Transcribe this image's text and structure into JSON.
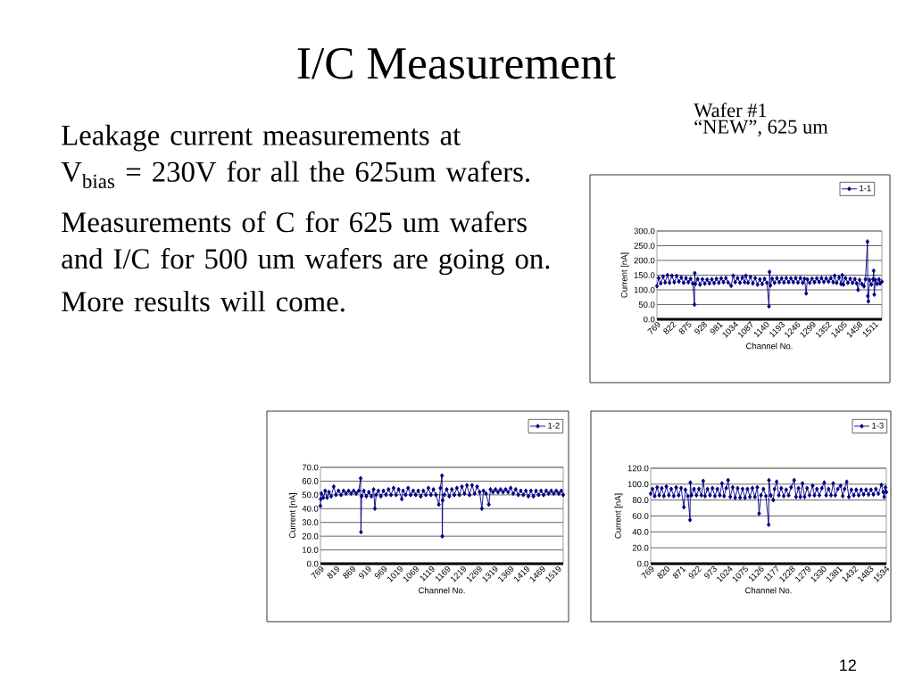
{
  "chart_data": [
    {
      "type": "other",
      "title": "I/C Measurement",
      "annotations": [
        "Leakage current measurements at\nV$_{bias}$ = 230V for all the 625um wafers.",
        "Measurements of C for 625 um wafers and I/C for 500 um wafers are going on.",
        "More results will come.",
        "12"
      ]
    },
    {
      "type": "line",
      "title": "Wafer #1",
      "subtitle": "“NEW”, 625 um",
      "xlabel": "Channel No.",
      "ylabel": "Current [nA]",
      "xlim": [
        769,
        1536
      ],
      "xticks": [
        769,
        822,
        875,
        928,
        981,
        1034,
        1087,
        1140,
        1193,
        1246,
        1299,
        1352,
        1405,
        1458,
        1511
      ],
      "ylim": [
        0,
        300
      ],
      "yticks": [
        {
          "value": 0,
          "label": "0.0"
        },
        {
          "value": 50,
          "label": "50.0"
        },
        {
          "value": 100,
          "label": "100.0"
        },
        {
          "value": 150,
          "label": "150.0"
        },
        {
          "value": 200,
          "label": "200.0"
        },
        {
          "value": 250,
          "label": "250.0"
        },
        {
          "value": 300,
          "label": "300.0"
        }
      ],
      "grid": "y",
      "legend": "top right",
      "marker": "diamond",
      "line_style": "solid",
      "x": [
        769,
        775,
        782,
        790,
        797,
        805,
        812,
        820,
        828,
        836,
        844,
        852,
        860,
        868,
        876,
        884,
        891,
        897,
        898,
        900,
        908,
        916,
        924,
        932,
        940,
        948,
        956,
        964,
        972,
        980,
        988,
        996,
        1004,
        1012,
        1022,
        1029,
        1036,
        1044,
        1052,
        1060,
        1068,
        1072,
        1080,
        1088,
        1096,
        1104,
        1112,
        1120,
        1128,
        1136,
        1144,
        1151,
        1153,
        1156,
        1162,
        1170,
        1178,
        1186,
        1194,
        1202,
        1210,
        1218,
        1226,
        1234,
        1242,
        1250,
        1258,
        1266,
        1272,
        1278,
        1282,
        1290,
        1298,
        1306,
        1314,
        1322,
        1330,
        1338,
        1346,
        1354,
        1362,
        1370,
        1375,
        1382,
        1390,
        1397,
        1401,
        1405,
        1412,
        1420,
        1428,
        1436,
        1444,
        1450,
        1455,
        1460,
        1468,
        1475,
        1480,
        1487,
        1488,
        1490,
        1494,
        1500,
        1506,
        1508,
        1510,
        1514,
        1520,
        1526,
        1530,
        1536
      ],
      "series": [
        {
          "name": "1-1",
          "color": "#000080",
          "values": [
            113,
            140,
            122,
            145,
            125,
            150,
            124,
            148,
            126,
            147,
            128,
            142,
            124,
            140,
            126,
            138,
            122,
            50,
            157,
            120,
            137,
            118,
            136,
            121,
            135,
            122,
            136,
            123,
            138,
            124,
            139,
            126,
            140,
            125,
            114,
            148,
            126,
            140,
            124,
            142,
            126,
            148,
            124,
            144,
            122,
            140,
            118,
            136,
            120,
            138,
            124,
            44,
            161,
            115,
            138,
            124,
            140,
            126,
            139,
            125,
            140,
            126,
            139,
            126,
            140,
            125,
            140,
            124,
            138,
            88,
            136,
            124,
            138,
            126,
            139,
            127,
            140,
            127,
            139,
            128,
            140,
            126,
            148,
            124,
            142,
            120,
            150,
            118,
            140,
            124,
            138,
            124,
            137,
            122,
            100,
            134,
            120,
            112,
            136,
            264,
            79,
            61,
            134,
            118,
            136,
            165,
            84,
            134,
            120,
            136,
            122,
            128
          ]
        }
      ]
    },
    {
      "type": "line",
      "xlabel": "Channel No.",
      "ylabel": "Current [nA]",
      "xlim": [
        769,
        1536
      ],
      "xticks": [
        769,
        819,
        869,
        919,
        969,
        1019,
        1069,
        1119,
        1169,
        1219,
        1269,
        1319,
        1369,
        1419,
        1469,
        1519
      ],
      "ylim": [
        0,
        70
      ],
      "yticks": [
        {
          "value": 0,
          "label": "0.0"
        },
        {
          "value": 10,
          "label": "10.0"
        },
        {
          "value": 20,
          "label": "20.0"
        },
        {
          "value": 30,
          "label": "30.0"
        },
        {
          "value": 40,
          "label": "40.0"
        },
        {
          "value": 50,
          "label": "50.0"
        },
        {
          "value": 60,
          "label": "60.0"
        },
        {
          "value": 70,
          "label": "70.0"
        }
      ],
      "grid": "y",
      "legend": "top right",
      "marker": "diamond",
      "line_style": "solid",
      "x": [
        769,
        770,
        772,
        778,
        784,
        790,
        796,
        803,
        811,
        818,
        826,
        834,
        842,
        850,
        858,
        866,
        874,
        882,
        890,
        896,
        897,
        899,
        906,
        914,
        922,
        930,
        937,
        941,
        945,
        952,
        960,
        968,
        976,
        984,
        992,
        1000,
        1008,
        1016,
        1026,
        1030,
        1038,
        1046,
        1054,
        1062,
        1070,
        1078,
        1086,
        1094,
        1102,
        1110,
        1118,
        1126,
        1134,
        1143,
        1148,
        1153,
        1154,
        1155,
        1160,
        1168,
        1176,
        1184,
        1192,
        1200,
        1208,
        1216,
        1224,
        1232,
        1240,
        1248,
        1256,
        1264,
        1272,
        1279,
        1284,
        1292,
        1301,
        1306,
        1314,
        1322,
        1330,
        1338,
        1346,
        1354,
        1362,
        1370,
        1378,
        1386,
        1394,
        1402,
        1410,
        1418,
        1426,
        1434,
        1442,
        1450,
        1458,
        1466,
        1474,
        1482,
        1490,
        1498,
        1506,
        1514,
        1522,
        1530,
        1536
      ],
      "series": [
        {
          "name": "1-2",
          "color": "#000080",
          "values": [
            42,
            47,
            51,
            48,
            53,
            48,
            52,
            49,
            56,
            50,
            53,
            50,
            53,
            51,
            53,
            51,
            53,
            51,
            53,
            62,
            23,
            49,
            53,
            49,
            52,
            49,
            54,
            40,
            50,
            53,
            49,
            53,
            50,
            54,
            50,
            55,
            50,
            54,
            47,
            53,
            50,
            55,
            50,
            53,
            50,
            53,
            49,
            53,
            50,
            55,
            50,
            54,
            50,
            43,
            55,
            64,
            20,
            46,
            50,
            54,
            49,
            54,
            50,
            55,
            50,
            56,
            51,
            57,
            50,
            57,
            51,
            56,
            52,
            40,
            53,
            51,
            43,
            54,
            52,
            54,
            52,
            54,
            52,
            54,
            52,
            55,
            51,
            54,
            50,
            53,
            50,
            53,
            49,
            53,
            49,
            53,
            50,
            53,
            50,
            53,
            51,
            53,
            51,
            53,
            51,
            53,
            50
          ]
        }
      ]
    },
    {
      "type": "line",
      "xlabel": "Channel No.",
      "ylabel": "Current [nA]",
      "xlim": [
        769,
        1536
      ],
      "xticks": [
        769,
        820,
        871,
        922,
        973,
        1024,
        1075,
        1126,
        1177,
        1228,
        1279,
        1330,
        1381,
        1432,
        1483,
        1534
      ],
      "ylim": [
        0,
        120
      ],
      "yticks": [
        {
          "value": 0,
          "label": "0.0"
        },
        {
          "value": 20,
          "label": "20.0"
        },
        {
          "value": 40,
          "label": "40.0"
        },
        {
          "value": 60,
          "label": "60.0"
        },
        {
          "value": 80,
          "label": "80.0"
        },
        {
          "value": 100,
          "label": "100.0"
        },
        {
          "value": 120,
          "label": "120.0"
        }
      ],
      "grid": "y",
      "legend": "top right",
      "marker": "diamond",
      "line_style": "solid",
      "x": [
        769,
        775,
        782,
        790,
        797,
        805,
        812,
        820,
        828,
        836,
        844,
        852,
        860,
        868,
        877,
        882,
        890,
        897,
        898,
        902,
        910,
        918,
        926,
        934,
        940,
        946,
        954,
        962,
        970,
        978,
        986,
        994,
        1001,
        1008,
        1015,
        1021,
        1028,
        1036,
        1044,
        1052,
        1060,
        1068,
        1076,
        1084,
        1092,
        1100,
        1108,
        1116,
        1122,
        1128,
        1136,
        1144,
        1153,
        1154,
        1160,
        1168,
        1172,
        1179,
        1186,
        1194,
        1202,
        1210,
        1218,
        1226,
        1236,
        1242,
        1250,
        1256,
        1263,
        1270,
        1278,
        1286,
        1296,
        1302,
        1310,
        1318,
        1326,
        1334,
        1340,
        1348,
        1356,
        1363,
        1370,
        1378,
        1387,
        1394,
        1400,
        1407,
        1414,
        1422,
        1430,
        1438,
        1446,
        1454,
        1462,
        1470,
        1478,
        1486,
        1494,
        1502,
        1510,
        1520,
        1526,
        1529,
        1533,
        1536
      ],
      "series": [
        {
          "name": "1-3",
          "color": "#000080",
          "values": [
            88,
            94,
            85,
            96,
            86,
            95,
            85,
            97,
            86,
            94,
            85,
            96,
            86,
            95,
            71,
            93,
            85,
            55,
            102,
            86,
            94,
            86,
            94,
            86,
            104,
            85,
            94,
            86,
            95,
            85,
            94,
            86,
            101,
            85,
            95,
            105,
            84,
            96,
            83,
            95,
            83,
            94,
            83,
            94,
            84,
            95,
            84,
            96,
            63,
            86,
            94,
            85,
            49,
            105,
            86,
            80,
            94,
            103,
            86,
            95,
            85,
            93,
            86,
            96,
            105,
            84,
            95,
            84,
            101,
            84,
            95,
            86,
            98,
            86,
            94,
            86,
            95,
            102,
            86,
            94,
            86,
            101,
            86,
            94,
            98,
            85,
            94,
            103,
            84,
            93,
            86,
            93,
            86,
            93,
            87,
            93,
            87,
            93,
            87,
            94,
            88,
            99,
            90,
            84,
            96,
            90
          ]
        }
      ]
    }
  ]
}
